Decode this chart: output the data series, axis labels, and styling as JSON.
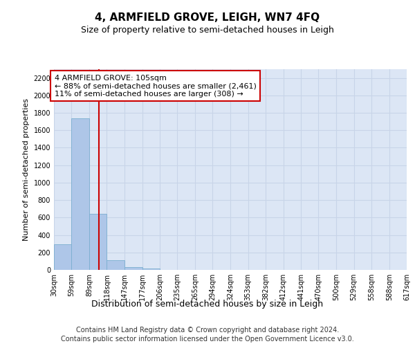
{
  "title": "4, ARMFIELD GROVE, LEIGH, WN7 4FQ",
  "subtitle": "Size of property relative to semi-detached houses in Leigh",
  "xlabel": "Distribution of semi-detached houses by size in Leigh",
  "ylabel": "Number of semi-detached properties",
  "footer_line1": "Contains HM Land Registry data © Crown copyright and database right 2024.",
  "footer_line2": "Contains public sector information licensed under the Open Government Licence v3.0.",
  "bin_edges": [
    30,
    59,
    89,
    118,
    147,
    177,
    206,
    235,
    265,
    294,
    324,
    353,
    382,
    412,
    441,
    470,
    500,
    529,
    558,
    588,
    617
  ],
  "bin_counts": [
    290,
    1740,
    640,
    115,
    35,
    15,
    0,
    0,
    0,
    0,
    0,
    0,
    0,
    0,
    0,
    0,
    0,
    0,
    0,
    0
  ],
  "bar_color": "#aec6e8",
  "bar_edgecolor": "#7aaed0",
  "property_size": 105,
  "property_label": "4 ARMFIELD GROVE: 105sqm",
  "annotation_line1": "← 88% of semi-detached houses are smaller (2,461)",
  "annotation_line2": "11% of semi-detached houses are larger (308) →",
  "vline_color": "#cc0000",
  "annotation_box_edgecolor": "#cc0000",
  "annotation_box_facecolor": "#ffffff",
  "ylim": [
    0,
    2300
  ],
  "yticks": [
    0,
    200,
    400,
    600,
    800,
    1000,
    1200,
    1400,
    1600,
    1800,
    2000,
    2200
  ],
  "grid_color": "#c8d4e8",
  "bg_color": "#dce6f5",
  "title_fontsize": 11,
  "subtitle_fontsize": 9,
  "tick_fontsize": 7,
  "ylabel_fontsize": 8,
  "xlabel_fontsize": 9,
  "footer_fontsize": 7,
  "annotation_fontsize": 8
}
